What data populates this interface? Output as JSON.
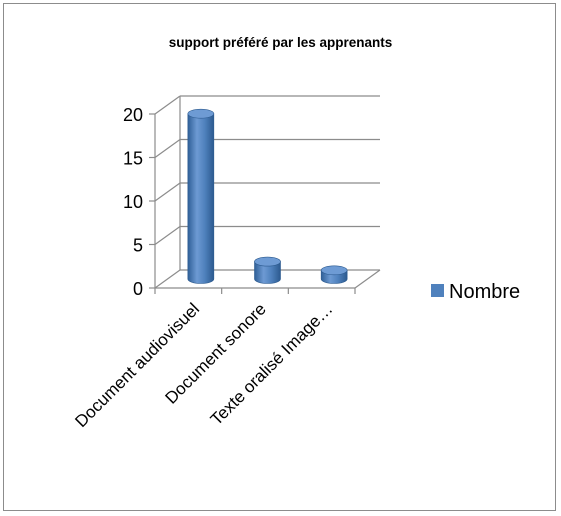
{
  "chart_data": {
    "type": "bar",
    "title": "support préféré par les apprenants",
    "categories": [
      "Document audiovisuel",
      "Document sonore",
      "Texte oralisé Image…"
    ],
    "series": [
      {
        "name": "Nombre",
        "values": [
          19,
          2,
          1
        ],
        "color": "#4f81bd"
      }
    ],
    "yticks": [
      "0",
      "5",
      "10",
      "15",
      "20"
    ],
    "ylim": [
      0,
      20
    ],
    "grid": true,
    "legend": "right",
    "style": "3d-cylinder"
  }
}
